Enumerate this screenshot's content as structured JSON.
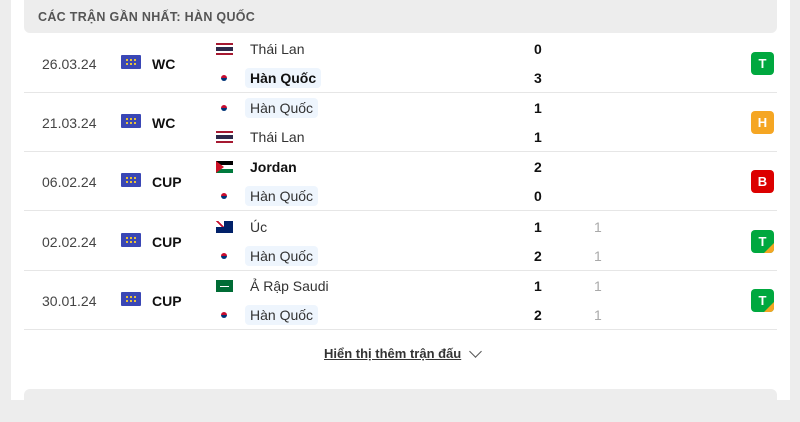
{
  "header": {
    "title": "CÁC TRẬN GẦN NHẤT: HÀN QUỐC"
  },
  "colors": {
    "win": "#00a83f",
    "draw": "#f5a623",
    "loss": "#dc0000"
  },
  "matches": [
    {
      "date": "26.03.24",
      "competition": "WC",
      "home": {
        "name": "Thái Lan",
        "flag": "thailand-flag",
        "score": "0"
      },
      "away": {
        "name": "Hàn Quốc",
        "flag": "korea-flag",
        "score": "3"
      },
      "result": "T"
    },
    {
      "date": "21.03.24",
      "competition": "WC",
      "home": {
        "name": "Hàn Quốc",
        "flag": "korea-flag",
        "score": "1"
      },
      "away": {
        "name": "Thái Lan",
        "flag": "thailand-flag",
        "score": "1"
      },
      "result": "H"
    },
    {
      "date": "06.02.24",
      "competition": "CUP",
      "home": {
        "name": "Jordan",
        "flag": "jordan-flag",
        "score": "2"
      },
      "away": {
        "name": "Hàn Quốc",
        "flag": "korea-flag",
        "score": "0"
      },
      "result": "B"
    },
    {
      "date": "02.02.24",
      "competition": "CUP",
      "home": {
        "name": "Úc",
        "flag": "australia-flag",
        "score": "1",
        "ht": "1"
      },
      "away": {
        "name": "Hàn Quốc",
        "flag": "korea-flag",
        "score": "2",
        "ht": "1"
      },
      "result": "T"
    },
    {
      "date": "30.01.24",
      "competition": "CUP",
      "home": {
        "name": "Ả Rập Saudi",
        "flag": "saudi-flag",
        "score": "1",
        "ht": "1"
      },
      "away": {
        "name": "Hàn Quốc",
        "flag": "korea-flag",
        "score": "2",
        "ht": "1"
      },
      "result": "T"
    }
  ],
  "show_more": "Hiển thị thêm trận đấu"
}
